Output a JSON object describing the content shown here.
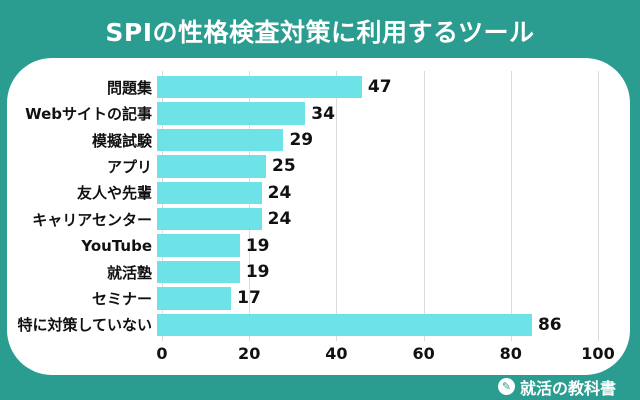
{
  "title": "SPIの性格検査対策に利用するツール",
  "chart_data": {
    "type": "bar",
    "orientation": "horizontal",
    "title": "SPIの性格検査対策に利用するツール",
    "categories": [
      "問題集",
      "Webサイトの記事",
      "模擬試験",
      "アプリ",
      "友人や先輩",
      "キャリアセンター",
      "YouTube",
      "就活塾",
      "セミナー",
      "特に対策していない"
    ],
    "values": [
      47,
      34,
      29,
      25,
      24,
      24,
      19,
      19,
      17,
      86
    ],
    "xlabel": "",
    "ylabel": "",
    "xlim": [
      0,
      100
    ],
    "xticks": [
      0,
      20,
      40,
      60,
      80,
      100
    ],
    "grid": true,
    "legend_position": "none",
    "value_labels": true,
    "bar_color": "#6DE2E7"
  },
  "footer": {
    "logo_text": "就活の教科書",
    "logo_icon": "book-pencil-icon",
    "logo_icon_glyph": "✎"
  },
  "colors": {
    "background": "#2A9D90",
    "card": "#FFFFFF",
    "bar": "#6DE2E7",
    "gridline": "#DCDCDC",
    "label_text": "#111111",
    "title_text": "#FFFFFF"
  }
}
